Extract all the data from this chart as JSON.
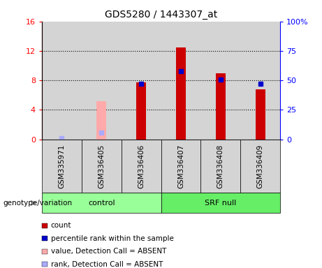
{
  "title": "GDS5280 / 1443307_at",
  "samples": [
    "GSM335971",
    "GSM336405",
    "GSM336406",
    "GSM336407",
    "GSM336408",
    "GSM336409"
  ],
  "count_values": [
    null,
    null,
    7.7,
    12.5,
    9.0,
    6.8
  ],
  "rank_values": [
    null,
    null,
    47,
    58,
    51,
    47
  ],
  "count_absent": [
    null,
    5.2,
    null,
    null,
    null,
    null
  ],
  "rank_absent": [
    0.7,
    5.8,
    null,
    null,
    null,
    null
  ],
  "ylim_left": [
    0,
    16
  ],
  "ylim_right": [
    0,
    100
  ],
  "yticks_left": [
    0,
    4,
    8,
    12,
    16
  ],
  "ytick_labels_left": [
    "0",
    "4",
    "8",
    "12",
    "16"
  ],
  "yticks_right": [
    0,
    25,
    50,
    75,
    100
  ],
  "ytick_labels_right": [
    "0",
    "25",
    "50",
    "75",
    "100%"
  ],
  "color_count": "#cc0000",
  "color_rank": "#0000cc",
  "color_count_absent": "#ffaaaa",
  "color_rank_absent": "#aaaaff",
  "group_info": [
    {
      "label": "control",
      "start": 0,
      "end": 2,
      "color": "#99ff99"
    },
    {
      "label": "SRF null",
      "start": 3,
      "end": 5,
      "color": "#66ee66"
    }
  ],
  "plot_bg": "#d4d4d4",
  "sample_box_bg": "#d4d4d4",
  "bar_width": 0.25,
  "legend_items": [
    {
      "label": "count",
      "color": "#cc0000"
    },
    {
      "label": "percentile rank within the sample",
      "color": "#0000cc"
    },
    {
      "label": "value, Detection Call = ABSENT",
      "color": "#ffaaaa"
    },
    {
      "label": "rank, Detection Call = ABSENT",
      "color": "#aaaaff"
    }
  ]
}
